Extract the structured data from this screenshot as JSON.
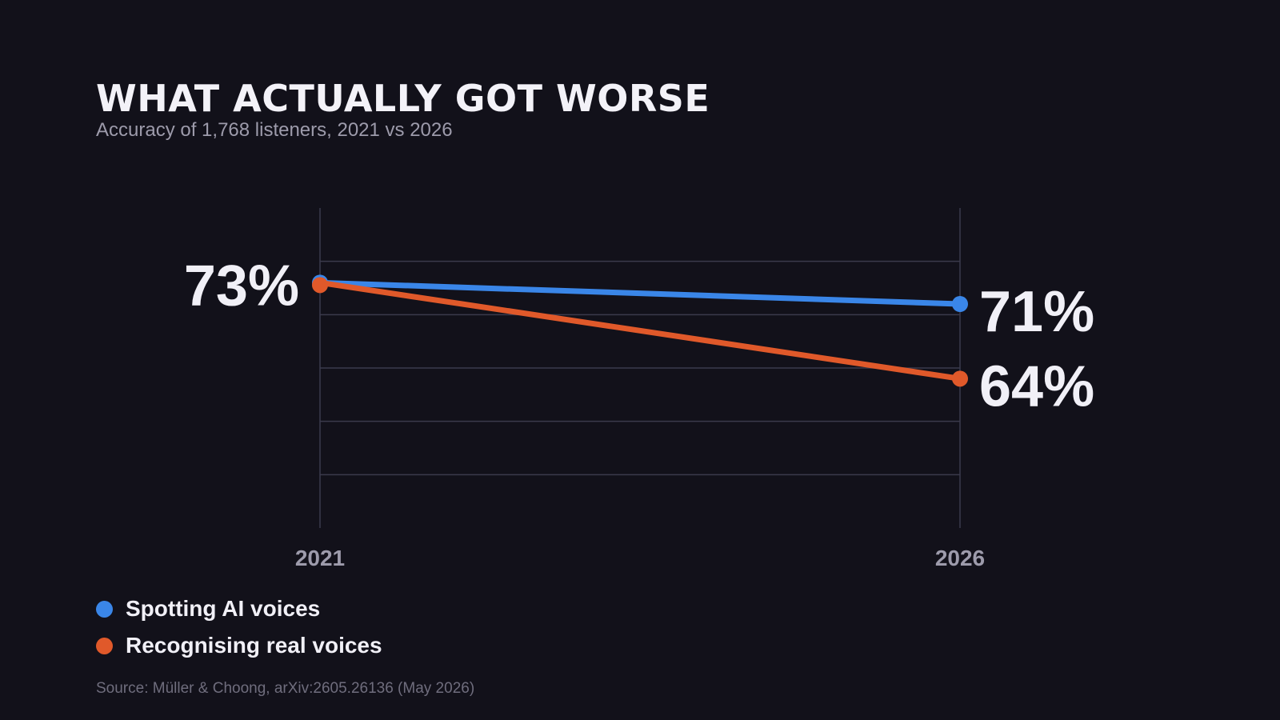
{
  "colors": {
    "background": "#12111a",
    "grid": "#3b3a4c",
    "text": "#f1f0f7",
    "muted": "#9d9bab",
    "ai_series": "#3a86e8",
    "real_series": "#e0592a"
  },
  "chart_data": {
    "type": "line",
    "title": "WHAT ACTUALLY GOT WORSE",
    "subtitle": "Accuracy of 1,768 listeners, 2021 vs 2026",
    "x": [
      "2021",
      "2026"
    ],
    "ylim": [
      50,
      80
    ],
    "grid": true,
    "legend_placement": "bottom-left",
    "series": [
      {
        "name": "Spotting AI voices",
        "color": "#3a86e8",
        "values": [
          73,
          71
        ],
        "labels": [
          "",
          "71%"
        ]
      },
      {
        "name": "Recognising real voices",
        "color": "#e0592a",
        "values": [
          73,
          64
        ],
        "labels": [
          "73%",
          "64%"
        ]
      }
    ],
    "source": "Source: Müller & Choong, arXiv:2605.26136 (May 2026)"
  }
}
